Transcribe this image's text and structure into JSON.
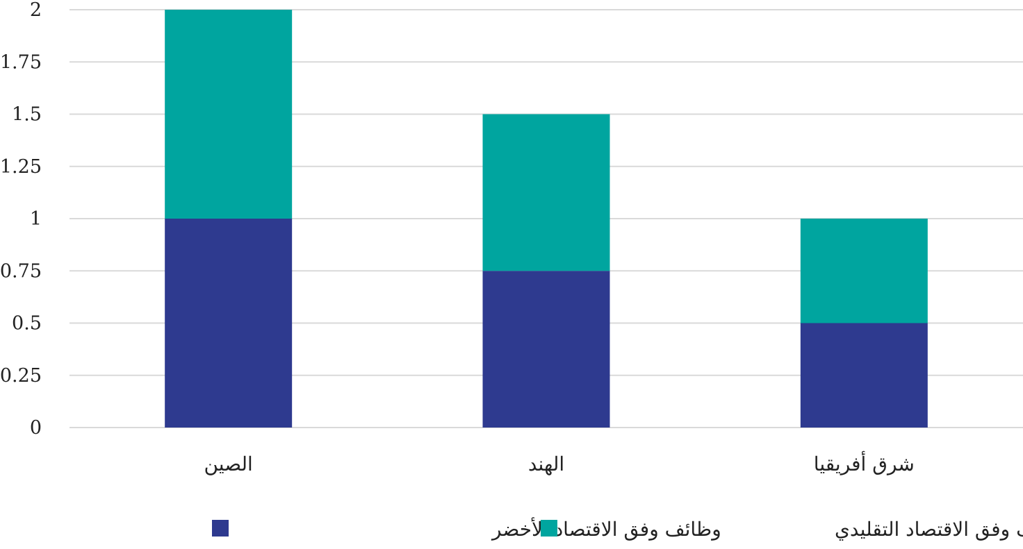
{
  "chart_data": {
    "type": "bar",
    "stacked": true,
    "categories": [
      "الصين",
      "الهند",
      "شرق أفريقيا"
    ],
    "series": [
      {
        "name": "وظائف وفق الاقتصاد الأخضر",
        "color": "#2e3a8f",
        "values": [
          1,
          0.75,
          0.5
        ]
      },
      {
        "name": "وظائف وفق الاقتصاد التقليدي",
        "color": "#00a59f",
        "values": [
          1,
          0.75,
          0.5
        ]
      }
    ],
    "yticks": [
      "0",
      "0.25",
      "0.5",
      "0.75",
      "1",
      "1.25",
      "1.5",
      "1.75",
      "2"
    ],
    "ylim": [
      0,
      2
    ],
    "grid": true,
    "grid_color": "#d9d9d9",
    "legend_position": "bottom"
  }
}
